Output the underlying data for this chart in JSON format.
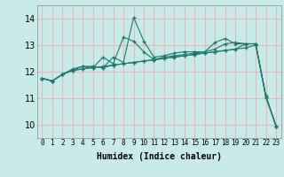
{
  "xlabel": "Humidex (Indice chaleur)",
  "xlim": [
    -0.5,
    23.5
  ],
  "ylim": [
    9.5,
    14.5
  ],
  "yticks": [
    10,
    11,
    12,
    13,
    14
  ],
  "xticks": [
    0,
    1,
    2,
    3,
    4,
    5,
    6,
    7,
    8,
    9,
    10,
    11,
    12,
    13,
    14,
    15,
    16,
    17,
    18,
    19,
    20,
    21,
    22,
    23
  ],
  "bg_color": "#c8eae8",
  "grid_color": "#e8b8b8",
  "line_color": "#1a7a6e",
  "series": [
    [
      11.75,
      11.65,
      11.9,
      12.05,
      12.1,
      12.2,
      12.15,
      12.25,
      12.3,
      12.35,
      12.4,
      12.45,
      12.5,
      12.55,
      12.6,
      12.65,
      12.7,
      12.75,
      12.8,
      12.85,
      12.9,
      13.0,
      11.1,
      9.95
    ],
    [
      11.75,
      11.65,
      11.9,
      12.05,
      12.2,
      12.15,
      12.55,
      12.3,
      13.3,
      13.15,
      12.75,
      12.45,
      12.55,
      12.6,
      12.65,
      12.7,
      12.75,
      13.1,
      13.25,
      13.05,
      13.05,
      13.05,
      11.05,
      9.95
    ],
    [
      11.75,
      11.65,
      11.9,
      12.1,
      12.2,
      12.2,
      12.15,
      12.55,
      12.35,
      14.05,
      13.15,
      12.55,
      12.6,
      12.7,
      12.75,
      12.75,
      12.75,
      12.85,
      13.05,
      13.1,
      13.05,
      13.05,
      11.05,
      9.95
    ],
    [
      11.75,
      11.65,
      11.9,
      12.05,
      12.1,
      12.15,
      12.2,
      12.25,
      12.3,
      12.35,
      12.4,
      12.45,
      12.5,
      12.55,
      12.6,
      12.65,
      12.7,
      12.75,
      12.8,
      12.85,
      13.05,
      13.05,
      11.05,
      9.95
    ]
  ]
}
